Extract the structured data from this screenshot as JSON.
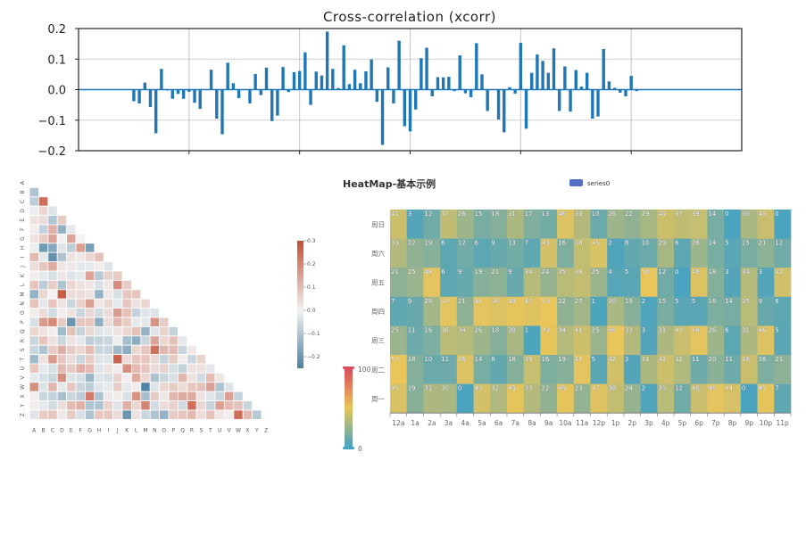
{
  "chart_data": [
    {
      "type": "bar",
      "title": "Cross-correlation (xcorr)",
      "xlabel": "",
      "ylabel": "",
      "ylim": [
        -0.2,
        0.2
      ],
      "yticks": [
        "0.2",
        "0.1",
        "0.0",
        "−0.1",
        "−0.2"
      ],
      "ytick_values": [
        0.2,
        0.1,
        0.0,
        -0.1,
        -0.2
      ],
      "xlim": [
        -60,
        60
      ],
      "xtick_values": [
        -40,
        -20,
        0,
        20,
        40
      ],
      "grid": true,
      "color": "#1f77b4",
      "lags_start": -50,
      "values": [
        -0.038,
        -0.045,
        0.023,
        -0.057,
        -0.143,
        0.068,
        -0.003,
        -0.03,
        -0.014,
        -0.03,
        -0.007,
        -0.043,
        -0.063,
        0,
        0.065,
        -0.095,
        -0.146,
        0.088,
        0.021,
        -0.028,
        0,
        -0.045,
        0.051,
        -0.018,
        0.072,
        -0.103,
        -0.085,
        0.074,
        -0.008,
        0.057,
        0.061,
        0.122,
        -0.05,
        0.059,
        0.046,
        0.19,
        0.068,
        0.005,
        0.145,
        0.018,
        0.065,
        0.021,
        0.06,
        0.099,
        -0.04,
        -0.181,
        0.073,
        -0.045,
        0.16,
        -0.12,
        -0.137,
        -0.065,
        0.103,
        0.137,
        -0.022,
        0.041,
        0.04,
        0.042,
        -0.005,
        0.112,
        -0.012,
        -0.025,
        0.152,
        0.05,
        -0.07,
        0,
        -0.098,
        -0.14,
        0.008,
        -0.013,
        0.153,
        -0.128,
        0.055,
        0.115,
        0.094,
        0.055,
        0.135,
        -0.07,
        0.076,
        -0.072,
        0.064,
        0.01,
        0.055,
        -0.095,
        -0.088,
        0.133,
        0.027,
        0.006,
        -0.01,
        -0.022,
        0.045,
        -0.005
      ]
    },
    {
      "type": "heatmap",
      "title": "",
      "subtype": "lower-triangle correlation matrix",
      "labels": [
        "A",
        "B",
        "C",
        "D",
        "E",
        "F",
        "G",
        "H",
        "I",
        "J",
        "K",
        "L",
        "M",
        "N",
        "O",
        "P",
        "Q",
        "R",
        "S",
        "T",
        "U",
        "V",
        "W",
        "X",
        "Y",
        "Z"
      ],
      "colorbar": {
        "min": -0.25,
        "max": 0.3,
        "ticks": [
          "0.3",
          "0.2",
          "0.1",
          "0.0",
          "−0.1",
          "−0.2"
        ],
        "tick_values": [
          0.3,
          0.2,
          0.1,
          0.0,
          -0.1,
          -0.2
        ],
        "low_color": "#4a7fa0",
        "mid_color": "#f2f2f2",
        "high_color": "#c44e34"
      },
      "matrix": [
        [],
        [
          -0.1
        ],
        [
          -0.08,
          0.24
        ],
        [
          -0.01,
          0.05,
          -0.03
        ],
        [
          0.03,
          0.04,
          -0.1,
          0.07
        ],
        [
          0.01,
          -0.07,
          0.12,
          -0.14,
          -0.02
        ],
        [
          0.03,
          0.07,
          0.14,
          0.0,
          0.14,
          0.0
        ],
        [
          -0.01,
          -0.19,
          -0.16,
          -0.03,
          -0.08,
          0.15,
          -0.18
        ],
        [
          0.1,
          -0.02,
          -0.21,
          -0.1,
          0.03,
          0.02,
          0.05,
          0.09
        ],
        [
          0.04,
          0.08,
          0.13,
          0.02,
          0.02,
          -0.02,
          -0.02,
          0.01,
          -0.03
        ],
        [
          0.01,
          -0.02,
          -0.04,
          0.02,
          -0.03,
          -0.02,
          0.14,
          -0.09,
          0.06,
          0.07
        ],
        [
          0.08,
          -0.08,
          0.07,
          -0.1,
          0.05,
          0.03,
          0.02,
          -0.04,
          0.02,
          0.19,
          0.07
        ],
        [
          -0.14,
          0.05,
          0.0,
          0.27,
          0.04,
          0.04,
          0.03,
          -0.14,
          0.02,
          -0.04,
          0.08,
          0.08
        ],
        [
          0.09,
          -0.02,
          0.08,
          0.03,
          -0.06,
          0.06,
          0.15,
          0.02,
          0.05,
          -0.02,
          0.08,
          0.03,
          0.05
        ],
        [
          0.01,
          0.04,
          -0.05,
          0.01,
          0.03,
          -0.06,
          0.05,
          -0.05,
          0.04,
          0.16,
          0.09,
          -0.07,
          -0.03,
          -0.03
        ],
        [
          -0.04,
          0.16,
          0.19,
          0.07,
          -0.2,
          0.08,
          0.08,
          -0.15,
          0.04,
          0.11,
          0.07,
          -0.02,
          -0.02,
          0.17,
          0.07
        ],
        [
          0.05,
          0.03,
          0.01,
          -0.12,
          0.09,
          -0.07,
          0.05,
          -0.03,
          -0.02,
          0.03,
          0.05,
          0.09,
          -0.14,
          -0.03,
          0.06,
          -0.07
        ],
        [
          -0.06,
          0.08,
          0.03,
          -0.06,
          0.03,
          -0.02,
          -0.08,
          -0.07,
          -0.06,
          -0.01,
          -0.11,
          -0.15,
          -0.06,
          0.14,
          0.05,
          0.09,
          -0.02
        ],
        [
          -0.06,
          -0.1,
          0.07,
          0.12,
          0.07,
          0.05,
          0.1,
          -0.06,
          -0.06,
          -0.12,
          -0.15,
          0.05,
          0.08,
          0.24,
          0.11,
          0.1,
          -0.06,
          0.02
        ],
        [
          -0.12,
          0.03,
          0.16,
          0.08,
          0.04,
          -0.06,
          0.07,
          -0.03,
          -0.03,
          0.26,
          0.04,
          0.08,
          0.08,
          0.05,
          -0.07,
          0.07,
          0.01,
          -0.06,
          0.06
        ],
        [
          0.08,
          -0.02,
          -0.04,
          0.1,
          0.07,
          0.12,
          0.1,
          -0.03,
          0.03,
          0.01,
          0.18,
          0.1,
          0.08,
          0.04,
          0.06,
          -0.04,
          -0.07,
          0.03,
          0.03,
          -0.02
        ],
        [
          -0.02,
          -0.04,
          -0.06,
          0.18,
          -0.03,
          -0.04,
          -0.13,
          -0.03,
          -0.04,
          0.06,
          0.01,
          0.13,
          0.05,
          -0.1,
          -0.06,
          -0.04,
          0.11,
          0.03,
          -0.05,
          0.1,
          0.02
        ],
        [
          0.18,
          -0.03,
          0.11,
          -0.02,
          0.08,
          -0.06,
          -0.08,
          -0.03,
          -0.02,
          0.07,
          -0.02,
          0.01,
          -0.24,
          -0.03,
          0.05,
          0.07,
          0.04,
          0.08,
          0.09,
          0.15,
          -0.1,
          -0.03
        ],
        [
          0.01,
          -0.06,
          -0.07,
          -0.11,
          -0.06,
          -0.08,
          0.22,
          -0.1,
          0.02,
          0.01,
          -0.04,
          0.17,
          -0.11,
          0.07,
          0.02,
          0.11,
          0.13,
          0.13,
          0.03,
          -0.03,
          -0.06,
          0.15,
          -0.07
        ],
        [
          0.01,
          -0.02,
          -0.05,
          0.04,
          0.1,
          0.12,
          -0.1,
          -0.1,
          0.06,
          -0.03,
          0.12,
          0.05,
          0.2,
          -0.05,
          0.04,
          0.06,
          -0.05,
          0.24,
          0.05,
          -0.07,
          0.15,
          0.1,
          0.09,
          -0.06
        ],
        [
          -0.03,
          0.07,
          0.08,
          0.02,
          0.07,
          -0.04,
          -0.1,
          0.08,
          0.08,
          0.04,
          -0.2,
          0.03,
          -0.06,
          -0.1,
          -0.14,
          0.07,
          0.08,
          0.1,
          0.04,
          0.09,
          0.02,
          0.01,
          0.24,
          0.1,
          -0.09
        ]
      ]
    },
    {
      "type": "heatmap",
      "title": "HeatMap-基本示例",
      "legend": [
        "series0"
      ],
      "legend_color": "#5470c6",
      "legend_position": "top-center",
      "x": [
        "12a",
        "1a",
        "2a",
        "3a",
        "4a",
        "5a",
        "6a",
        "7a",
        "8a",
        "9a",
        "10a",
        "11a",
        "12p",
        "1p",
        "2p",
        "3p",
        "4p",
        "5p",
        "6p",
        "7p",
        "8p",
        "9p",
        "10p",
        "11p"
      ],
      "y": [
        "周日",
        "周六",
        "周五",
        "周四",
        "周三",
        "周二",
        "周一"
      ],
      "values": [
        [
          41,
          3,
          12,
          37,
          26,
          15,
          18,
          31,
          17,
          13,
          46,
          33,
          10,
          26,
          22,
          29,
          41,
          37,
          39,
          14,
          0,
          30,
          40,
          0
        ],
        [
          33,
          22,
          19,
          6,
          12,
          6,
          9,
          13,
          7,
          43,
          16,
          38,
          45,
          2,
          8,
          10,
          29,
          6,
          26,
          14,
          5,
          15,
          21,
          12
        ],
        [
          21,
          25,
          48,
          6,
          9,
          19,
          21,
          9,
          34,
          24,
          35,
          38,
          25,
          4,
          5,
          50,
          12,
          0,
          46,
          18,
          3,
          34,
          3,
          42
        ],
        [
          7,
          9,
          28,
          48,
          21,
          48,
          46,
          49,
          47,
          50,
          22,
          27,
          1,
          30,
          19,
          2,
          15,
          5,
          5,
          16,
          14,
          35,
          9,
          6
        ],
        [
          25,
          11,
          16,
          36,
          34,
          26,
          18,
          30,
          1,
          49,
          34,
          41,
          25,
          50,
          33,
          3,
          31,
          40,
          48,
          26,
          6,
          31,
          46,
          5
        ],
        [
          50,
          18,
          10,
          11,
          46,
          14,
          8,
          18,
          39,
          16,
          19,
          48,
          5,
          42,
          3,
          31,
          41,
          32,
          11,
          20,
          11,
          40,
          16,
          21
        ],
        [
          45,
          19,
          31,
          30,
          0,
          43,
          32,
          49,
          33,
          22,
          49,
          23,
          47,
          38,
          24,
          2,
          35,
          12,
          40,
          48,
          44,
          0,
          49,
          7
        ]
      ],
      "visual_map": {
        "min": 0,
        "max": 100,
        "min_label": "0",
        "max_label": "100",
        "colors": [
          "#4aa3bf",
          "#e9c55a",
          "#d94e5d"
        ]
      }
    }
  ]
}
